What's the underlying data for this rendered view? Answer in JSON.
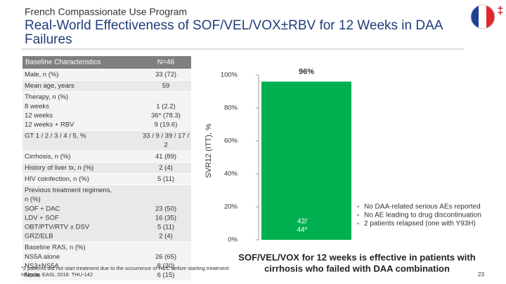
{
  "header": {
    "subtitle": "French Compassionate Use Program",
    "title": [
      "Real-World Effectiveness of SOF/VEL/VOX±RBV for 12 Weeks in DAA",
      "Failures"
    ],
    "mark": "‡"
  },
  "table": {
    "columns": [
      "Baseline Characteristics",
      "N=46"
    ],
    "rows": [
      {
        "label": [
          "Male, n (%)"
        ],
        "value": [
          "33 (72)"
        ]
      },
      {
        "label": [
          "Mean age, years"
        ],
        "value": [
          "59"
        ]
      },
      {
        "label": [
          "Therapy, n (%)",
          " 8 weeks",
          " 12 weeks",
          " 12 weeks + RBV"
        ],
        "value": [
          "1 (2.2)",
          "36* (78.3)",
          "9 (19.6)"
        ]
      },
      {
        "label": [
          "GT 1 / 2 / 3 / 4 / 5, %"
        ],
        "value": [
          "33 / 9 / 39 / 17 /",
          "2"
        ]
      },
      {
        "label": [
          "Cirrhosis, n (%)"
        ],
        "value": [
          "41 (89)"
        ]
      },
      {
        "label": [
          "History of liver tx, n (%)"
        ],
        "value": [
          "2 (4)"
        ]
      },
      {
        "label": [
          "HIV coinfection, n (%)"
        ],
        "value": [
          "5 (11)"
        ]
      },
      {
        "label": [
          "Previous treatment regimens,",
          "n (%)",
          "   SOF + DAC",
          "   LDV + SOF",
          "   OBT/PTV/RTV ± DSV",
          "   GRZ/ELB"
        ],
        "value": [
          "23 (50)",
          "16 (35)",
          "5 (11)",
          "2 (4)"
        ]
      },
      {
        "label": [
          "Baseline RAS, n (%)",
          "   NS5A alone",
          "   NS3+NS5A",
          "   None"
        ],
        "value": [
          "26 (65)",
          "8 (20)",
          "6 (15)"
        ]
      }
    ]
  },
  "chart_data": {
    "type": "bar",
    "ylabel": "SVR12 (ITT), %",
    "values": [
      96
    ],
    "value_labels": [
      "96%"
    ],
    "color": "#00b050",
    "annotation": [
      "42/",
      "44*"
    ],
    "ylim": [
      0,
      100
    ],
    "yticks": [
      {
        "value": 0,
        "label": "0%"
      },
      {
        "value": 20,
        "label": "20%"
      },
      {
        "value": 40,
        "label": "40%"
      },
      {
        "value": 60,
        "label": "60%"
      },
      {
        "value": 80,
        "label": "80%"
      },
      {
        "value": 100,
        "label": "100%"
      }
    ]
  },
  "bullets": [
    "No DAA-related serious AEs reported",
    "No AE leading to drug discontinuation",
    "2 patients relapsed (one with Y93H)"
  ],
  "conclusion": [
    "SOF/VEL/VOX for 12 weeks is effective in patients with",
    "cirrhosis who failed with DAA combination"
  ],
  "footnote": [
    "*2 patients did not start treatment due to the occurrence of HCC before starting treatment",
    "Hézode. EASL 2018. THU-142"
  ],
  "page": "23"
}
